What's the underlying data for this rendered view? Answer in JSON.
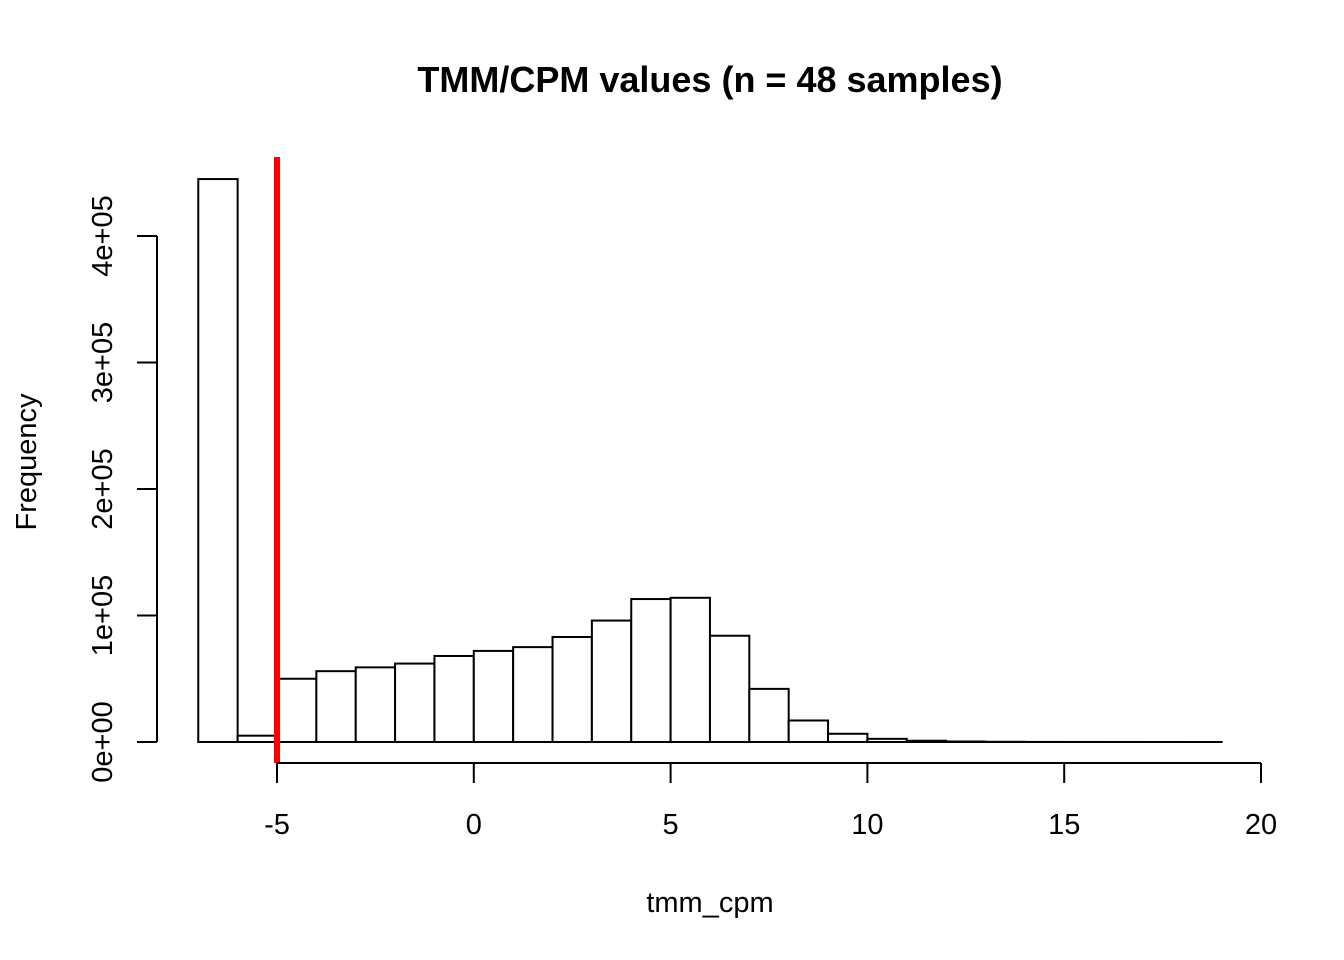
{
  "chart_data": {
    "type": "bar",
    "subtype": "histogram",
    "title": "TMM/CPM values (n = 48 samples)",
    "xlabel": "tmm_cpm",
    "ylabel": "Frequency",
    "xlim": [
      -7,
      20
    ],
    "ylim": [
      0,
      450000
    ],
    "x_ticks": [
      {
        "value": -5,
        "label": "-5"
      },
      {
        "value": 0,
        "label": "0"
      },
      {
        "value": 5,
        "label": "5"
      },
      {
        "value": 10,
        "label": "10"
      },
      {
        "value": 15,
        "label": "15"
      },
      {
        "value": 20,
        "label": "20"
      }
    ],
    "y_ticks": [
      {
        "value": 0,
        "label": "0e+00"
      },
      {
        "value": 100000,
        "label": "1e+05"
      },
      {
        "value": 200000,
        "label": "2e+05"
      },
      {
        "value": 300000,
        "label": "3e+05"
      },
      {
        "value": 400000,
        "label": "4e+05"
      }
    ],
    "bin_edges": [
      -7,
      -6,
      -5,
      -4,
      -3,
      -2,
      -1,
      0,
      1,
      2,
      3,
      4,
      5,
      6,
      7,
      8,
      9,
      10,
      11,
      12,
      13,
      14,
      15,
      16,
      17,
      18,
      19
    ],
    "values": [
      445000,
      5000,
      50000,
      56000,
      59000,
      62000,
      68000,
      72000,
      75000,
      83000,
      96000,
      113000,
      114000,
      84000,
      42000,
      17000,
      6500,
      2500,
      1000,
      400,
      150,
      60,
      30,
      15,
      8,
      4
    ],
    "vline": {
      "x": -5,
      "color": "#ff0000"
    },
    "grid": false,
    "legend": "none"
  }
}
